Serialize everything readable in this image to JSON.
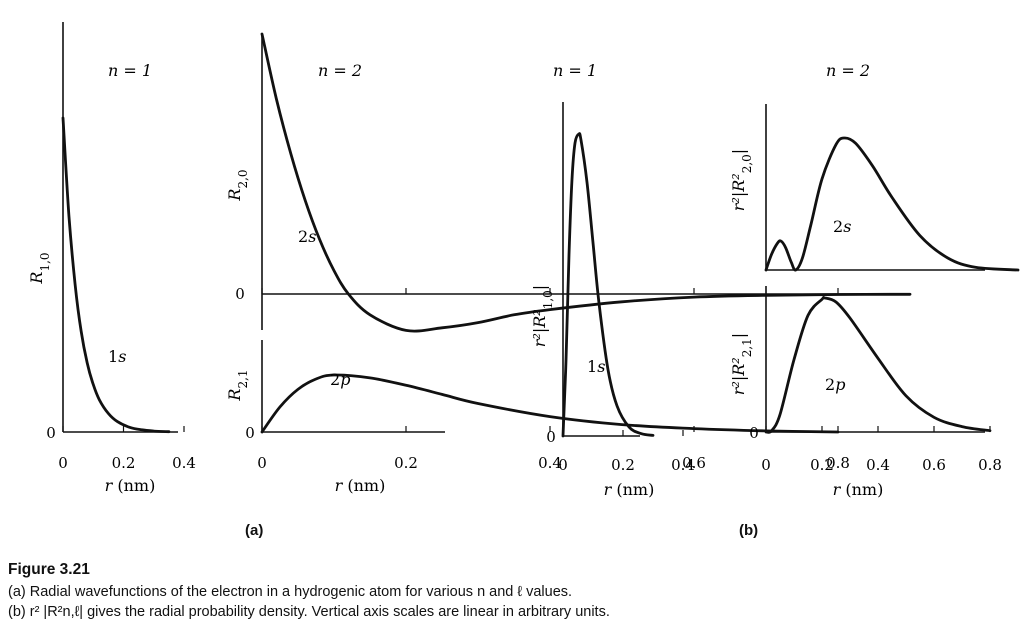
{
  "panel_labels": {
    "a": "(a)",
    "b": "(b)"
  },
  "caption": {
    "figure_number": "Figure 3.21",
    "line_a": "(a) Radial wavefunctions of the electron in a hydrogenic atom for various n and ℓ values.",
    "line_b": "(b) r² |R²n,ℓ| gives the radial probability density. Vertical axis scales are linear in arbitrary units."
  },
  "chart_data": [
    {
      "id": "R10",
      "type": "line",
      "title": "n = 1",
      "xlabel": "r (nm)",
      "ylabel": "R1,0",
      "x_ticks": [
        "0",
        "0.2",
        "0.4"
      ],
      "y_ticks": [
        "0"
      ],
      "xlim": [
        0,
        0.4
      ],
      "ylim": [
        0,
        1.0
      ],
      "grid": false,
      "series": [
        {
          "name": "1s",
          "x": [
            0,
            0.02,
            0.04,
            0.06,
            0.08,
            0.1,
            0.12,
            0.15,
            0.18,
            0.22,
            0.26,
            0.3,
            0.35
          ],
          "y": [
            1.0,
            0.685,
            0.47,
            0.32,
            0.22,
            0.151,
            0.103,
            0.059,
            0.033,
            0.015,
            0.007,
            0.003,
            0.001
          ]
        }
      ]
    },
    {
      "id": "R20",
      "type": "line",
      "title": "n = 2",
      "xlabel": "r (nm)",
      "ylabel": "R2,0",
      "x_ticks": [
        "0",
        "0.2",
        "0.4",
        "0.6",
        "0.8"
      ],
      "y_ticks": [
        "0"
      ],
      "xlim": [
        0,
        0.9
      ],
      "ylim": [
        -0.15,
        1.0
      ],
      "grid": false,
      "series": [
        {
          "name": "2s",
          "x": [
            0,
            0.02,
            0.04,
            0.06,
            0.08,
            0.1,
            0.12,
            0.15,
            0.2,
            0.25,
            0.3,
            0.35,
            0.4,
            0.5,
            0.6,
            0.7,
            0.8,
            0.9
          ],
          "y": [
            1.0,
            0.75,
            0.54,
            0.36,
            0.21,
            0.09,
            0.0,
            -0.08,
            -0.14,
            -0.13,
            -0.11,
            -0.08,
            -0.06,
            -0.03,
            -0.012,
            -0.005,
            -0.002,
            -0.001
          ]
        }
      ]
    },
    {
      "id": "R21",
      "type": "line",
      "title": "",
      "xlabel": "r (nm)",
      "ylabel": "R2,1",
      "x_ticks": [
        "0",
        "0.2",
        "0.4",
        "0.6",
        "0.8"
      ],
      "y_ticks": [
        "0"
      ],
      "xlim": [
        0,
        0.9
      ],
      "ylim": [
        0,
        1.0
      ],
      "grid": false,
      "series": [
        {
          "name": "2p",
          "x": [
            0,
            0.025,
            0.05,
            0.075,
            0.1,
            0.15,
            0.2,
            0.25,
            0.3,
            0.4,
            0.5,
            0.6,
            0.7,
            0.8
          ],
          "y": [
            0,
            0.44,
            0.75,
            0.93,
            1.0,
            0.95,
            0.82,
            0.66,
            0.5,
            0.27,
            0.13,
            0.06,
            0.02,
            0.0
          ]
        }
      ]
    },
    {
      "id": "P10",
      "type": "line",
      "title": "n = 1",
      "xlabel": "r (nm)",
      "ylabel": "r²|R²1,0|",
      "x_ticks": [
        "0",
        "0.2",
        "0.4"
      ],
      "y_ticks": [
        "0"
      ],
      "xlim": [
        0,
        0.4
      ],
      "ylim": [
        0,
        1.0
      ],
      "grid": false,
      "series": [
        {
          "name": "1s",
          "x": [
            0,
            0.01,
            0.02,
            0.03,
            0.04,
            0.053,
            0.06,
            0.08,
            0.1,
            0.12,
            0.15,
            0.18,
            0.22,
            0.26,
            0.3
          ],
          "y": [
            0,
            0.25,
            0.6,
            0.85,
            0.97,
            1.0,
            0.98,
            0.84,
            0.64,
            0.44,
            0.22,
            0.1,
            0.03,
            0.008,
            0.002
          ]
        }
      ]
    },
    {
      "id": "P20",
      "type": "line",
      "title": "n = 2",
      "xlabel": "",
      "ylabel": "r²|R²2,0|",
      "x_ticks": [],
      "y_ticks": [],
      "xlim": [
        0,
        0.9
      ],
      "ylim": [
        0,
        1.0
      ],
      "grid": false,
      "series": [
        {
          "name": "2s",
          "x": [
            0,
            0.02,
            0.04,
            0.053,
            0.07,
            0.09,
            0.106,
            0.13,
            0.16,
            0.2,
            0.25,
            0.28,
            0.32,
            0.38,
            0.45,
            0.55,
            0.65,
            0.75,
            0.9
          ],
          "y": [
            0,
            0.12,
            0.2,
            0.22,
            0.17,
            0.06,
            0.0,
            0.09,
            0.34,
            0.69,
            0.95,
            1.0,
            0.96,
            0.79,
            0.55,
            0.26,
            0.09,
            0.02,
            0.0
          ]
        }
      ]
    },
    {
      "id": "P21",
      "type": "line",
      "title": "",
      "xlabel": "r (nm)",
      "ylabel": "r²|R²2,1|",
      "x_ticks": [
        "0",
        "0.2",
        "0.4",
        "0.6",
        "0.8"
      ],
      "y_ticks": [
        "0"
      ],
      "xlim": [
        0,
        0.9
      ],
      "ylim": [
        0,
        1.0
      ],
      "grid": false,
      "series": [
        {
          "name": "2p",
          "x": [
            0,
            0.02,
            0.05,
            0.1,
            0.15,
            0.2,
            0.21,
            0.25,
            0.3,
            0.4,
            0.5,
            0.6,
            0.7,
            0.8
          ],
          "y": [
            0,
            0.01,
            0.13,
            0.54,
            0.87,
            0.99,
            1.0,
            0.97,
            0.85,
            0.55,
            0.27,
            0.11,
            0.04,
            0.01
          ]
        }
      ]
    }
  ]
}
